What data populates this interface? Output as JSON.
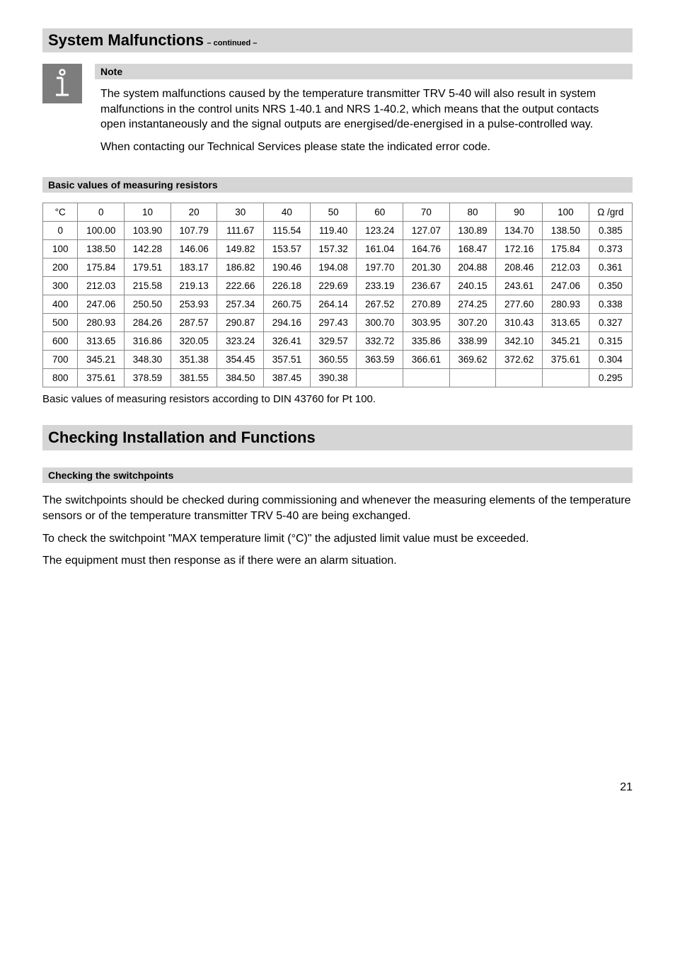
{
  "header1": {
    "title": "System Malfunctions",
    "suffix": "  – continued –"
  },
  "note": {
    "header": "Note",
    "para1": "The system malfunctions caused by the temperature transmitter TRV 5-40 will also result in system malfunctions in the control units NRS 1-40.1 and NRS 1-40.2, which means that the output contacts open instantaneously and the signal outputs are energised/de-energised in a pulse-controlled way.",
    "para2": "When contacting our Technical Services please state the indicated error code."
  },
  "icon": {
    "bg": "#7d7d7d",
    "stroke": "#ffffff"
  },
  "resistors": {
    "header": "Basic values of measuring resistors",
    "caption": "Basic values of measuring resistors according to DIN 43760 for Pt 100.",
    "columns": [
      "°C",
      "0",
      "10",
      "20",
      "30",
      "40",
      "50",
      "60",
      "70",
      "80",
      "90",
      "100",
      "Ω /grd"
    ],
    "rows": [
      [
        "0",
        "100.00",
        "103.90",
        "107.79",
        "111.67",
        "115.54",
        "119.40",
        "123.24",
        "127.07",
        "130.89",
        "134.70",
        "138.50",
        "0.385"
      ],
      [
        "100",
        "138.50",
        "142.28",
        "146.06",
        "149.82",
        "153.57",
        "157.32",
        "161.04",
        "164.76",
        "168.47",
        "172.16",
        "175.84",
        "0.373"
      ],
      [
        "200",
        "175.84",
        "179.51",
        "183.17",
        "186.82",
        "190.46",
        "194.08",
        "197.70",
        "201.30",
        "204.88",
        "208.46",
        "212.03",
        "0.361"
      ],
      [
        "300",
        "212.03",
        "215.58",
        "219.13",
        "222.66",
        "226.18",
        "229.69",
        "233.19",
        "236.67",
        "240.15",
        "243.61",
        "247.06",
        "0.350"
      ],
      [
        "400",
        "247.06",
        "250.50",
        "253.93",
        "257.34",
        "260.75",
        "264.14",
        "267.52",
        "270.89",
        "274.25",
        "277.60",
        "280.93",
        "0.338"
      ],
      [
        "500",
        "280.93",
        "284.26",
        "287.57",
        "290.87",
        "294.16",
        "297.43",
        "300.70",
        "303.95",
        "307.20",
        "310.43",
        "313.65",
        "0.327"
      ],
      [
        "600",
        "313.65",
        "316.86",
        "320.05",
        "323.24",
        "326.41",
        "329.57",
        "332.72",
        "335.86",
        "338.99",
        "342.10",
        "345.21",
        "0.315"
      ],
      [
        "700",
        "345.21",
        "348.30",
        "351.38",
        "354.45",
        "357.51",
        "360.55",
        "363.59",
        "366.61",
        "369.62",
        "372.62",
        "375.61",
        "0.304"
      ],
      [
        "800",
        "375.61",
        "378.59",
        "381.55",
        "384.50",
        "387.45",
        "390.38",
        "",
        "",
        "",
        "",
        "",
        "0.295"
      ]
    ],
    "col_widths": [
      "5.5%",
      "7.3%",
      "7.3%",
      "7.3%",
      "7.3%",
      "7.3%",
      "7.3%",
      "7.3%",
      "7.3%",
      "7.3%",
      "7.3%",
      "7.3%",
      "6.8%"
    ]
  },
  "header2": {
    "title": "Checking Installation and Functions"
  },
  "switchpoints": {
    "header": "Checking the switchpoints",
    "para1": "The switchpoints should be checked during commissioning and whenever the measuring elements of the temperature sensors or of the temperature transmitter TRV 5-40 are being exchanged.",
    "para2": "To check the switchpoint \"MAX temperature limit (°C)\" the adjusted limit value must be exceeded.",
    "para3": "The equipment must then response as if there were an alarm situation."
  },
  "page_number": "21"
}
